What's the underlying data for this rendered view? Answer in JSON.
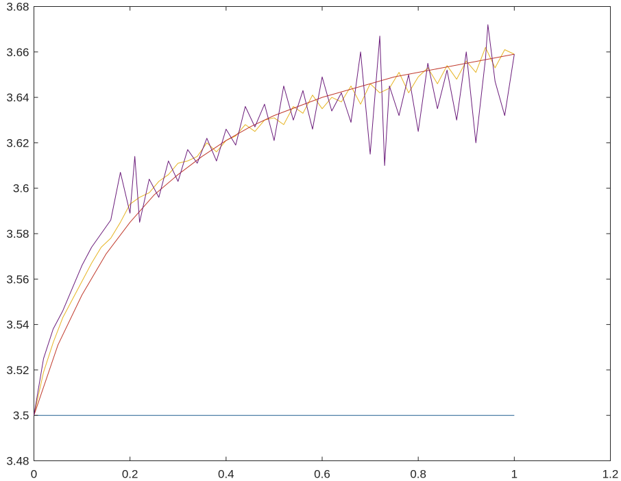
{
  "chart_data": {
    "type": "line",
    "title": "",
    "xlabel": "",
    "ylabel": "",
    "xlim": [
      0,
      1.2
    ],
    "ylim": [
      3.48,
      3.68
    ],
    "x_ticks": [
      0,
      0.2,
      0.4,
      0.6,
      0.8,
      1,
      1.2
    ],
    "x_tick_labels": [
      "0",
      "0.2",
      "0.4",
      "0.6",
      "0.8",
      "1",
      "1.2"
    ],
    "y_ticks": [
      3.48,
      3.5,
      3.52,
      3.54,
      3.56,
      3.58,
      3.6,
      3.62,
      3.64,
      3.66,
      3.68
    ],
    "y_tick_labels": [
      "3.48",
      "3.5",
      "3.52",
      "3.54",
      "3.56",
      "3.58",
      "3.6",
      "3.62",
      "3.64",
      "3.66",
      "3.68"
    ],
    "grid": false,
    "legend": "none",
    "series": [
      {
        "color": "#1f5f8f",
        "x": [
          0,
          1
        ],
        "y": [
          3.5,
          3.5
        ]
      },
      {
        "color": "#e6b422",
        "x": [
          0,
          0.02,
          0.04,
          0.06,
          0.08,
          0.1,
          0.12,
          0.14,
          0.16,
          0.18,
          0.2,
          0.22,
          0.24,
          0.26,
          0.28,
          0.3,
          0.32,
          0.34,
          0.36,
          0.38,
          0.4,
          0.42,
          0.44,
          0.46,
          0.48,
          0.5,
          0.52,
          0.54,
          0.56,
          0.58,
          0.6,
          0.62,
          0.64,
          0.66,
          0.68,
          0.7,
          0.72,
          0.74,
          0.76,
          0.78,
          0.8,
          0.82,
          0.84,
          0.86,
          0.88,
          0.9,
          0.92,
          0.94,
          0.96,
          0.98,
          1
        ],
        "y": [
          3.5,
          3.519,
          3.532,
          3.543,
          3.551,
          3.559,
          3.567,
          3.574,
          3.578,
          3.585,
          3.593,
          3.596,
          3.598,
          3.603,
          3.606,
          3.611,
          3.612,
          3.614,
          3.62,
          3.616,
          3.621,
          3.623,
          3.628,
          3.625,
          3.63,
          3.631,
          3.628,
          3.636,
          3.633,
          3.641,
          3.635,
          3.64,
          3.638,
          3.645,
          3.637,
          3.646,
          3.642,
          3.644,
          3.651,
          3.642,
          3.649,
          3.653,
          3.646,
          3.654,
          3.648,
          3.656,
          3.651,
          3.662,
          3.653,
          3.661,
          3.659
        ]
      },
      {
        "color": "#c0392b",
        "x": [
          0,
          0.05,
          0.1,
          0.15,
          0.2,
          0.25,
          0.3,
          0.35,
          0.4,
          0.45,
          0.5,
          0.55,
          0.6,
          0.65,
          0.7,
          0.75,
          0.8,
          0.85,
          0.9,
          0.95,
          1
        ],
        "y": [
          3.5,
          3.531,
          3.553,
          3.571,
          3.585,
          3.597,
          3.606,
          3.614,
          3.621,
          3.627,
          3.632,
          3.636,
          3.64,
          3.643,
          3.646,
          3.649,
          3.651,
          3.653,
          3.655,
          3.657,
          3.659
        ]
      },
      {
        "color": "#6a1b7a",
        "x": [
          0,
          0.02,
          0.04,
          0.06,
          0.08,
          0.1,
          0.12,
          0.14,
          0.16,
          0.18,
          0.2,
          0.21,
          0.22,
          0.24,
          0.26,
          0.28,
          0.3,
          0.32,
          0.34,
          0.36,
          0.38,
          0.4,
          0.42,
          0.44,
          0.46,
          0.48,
          0.5,
          0.52,
          0.54,
          0.56,
          0.58,
          0.6,
          0.62,
          0.64,
          0.66,
          0.68,
          0.7,
          0.72,
          0.73,
          0.74,
          0.76,
          0.78,
          0.8,
          0.82,
          0.84,
          0.86,
          0.88,
          0.9,
          0.92,
          0.94,
          0.945,
          0.96,
          0.98,
          1
        ],
        "y": [
          3.5,
          3.525,
          3.538,
          3.546,
          3.556,
          3.566,
          3.574,
          3.58,
          3.586,
          3.607,
          3.589,
          3.614,
          3.585,
          3.604,
          3.596,
          3.612,
          3.603,
          3.617,
          3.611,
          3.622,
          3.612,
          3.626,
          3.619,
          3.636,
          3.627,
          3.637,
          3.621,
          3.645,
          3.63,
          3.643,
          3.626,
          3.649,
          3.634,
          3.642,
          3.629,
          3.66,
          3.615,
          3.667,
          3.61,
          3.645,
          3.632,
          3.65,
          3.625,
          3.655,
          3.635,
          3.652,
          3.63,
          3.66,
          3.62,
          3.657,
          3.672,
          3.647,
          3.632,
          3.659
        ]
      }
    ]
  }
}
